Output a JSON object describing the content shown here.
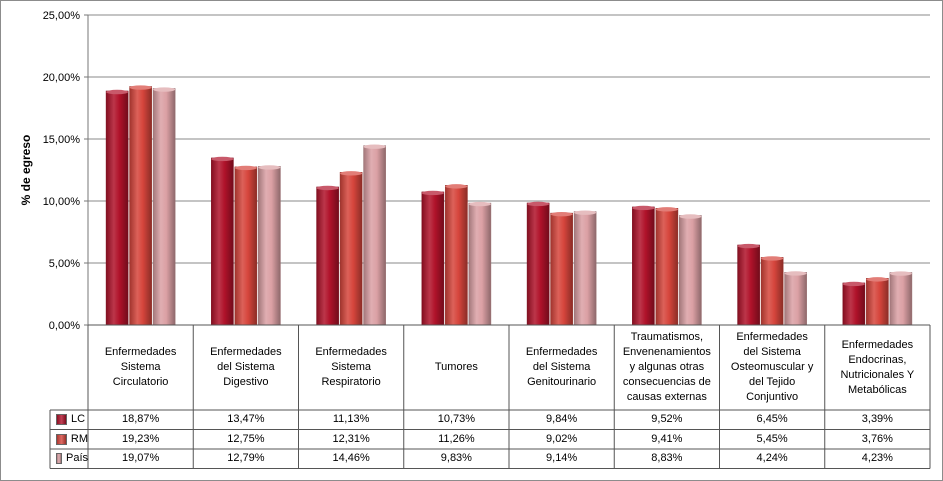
{
  "chart_data": {
    "type": "bar",
    "ylabel": "% de egreso",
    "ylim": [
      0,
      25
    ],
    "yticks": [
      "0,00%",
      "5,00%",
      "10,00%",
      "15,00%",
      "20,00%",
      "25,00%"
    ],
    "grid": true,
    "legend": "table-left",
    "categories": [
      "Enfermedades Sistema Circulatorio",
      "Enfermedades del Sistema Digestivo",
      "Enfermedades Sistema Respiratorio",
      "Tumores",
      "Enfermedades del Sistema Genitourinario",
      "Traumatismos, Envenenamientos y algunas otras consecuencias de causas externas",
      "Enfermedades del Sistema Osteomuscular y del Tejido Conjuntivo",
      "Enfermedades Endocrinas, Nutricionales Y Metabólicas"
    ],
    "category_lines": [
      [
        "Enfermedades",
        "Sistema",
        "Circulatorio"
      ],
      [
        "Enfermedades",
        "del Sistema",
        "Digestivo"
      ],
      [
        "Enfermedades",
        "Sistema",
        "Respiratorio"
      ],
      [
        "Tumores"
      ],
      [
        "Enfermedades",
        "del Sistema",
        "Genitourinario"
      ],
      [
        "Traumatismos,",
        "Envenenamientos",
        "y algunas otras",
        "consecuencias de",
        "causas externas"
      ],
      [
        "Enfermedades",
        "del Sistema",
        "Osteomuscular y",
        "del Tejido",
        "Conjuntivo"
      ],
      [
        "Enfermedades",
        "Endocrinas,",
        "Nutricionales Y",
        "Metabólicas"
      ]
    ],
    "series": [
      {
        "name": "LC",
        "color": "#b0122a",
        "values": [
          18.87,
          13.47,
          11.13,
          10.73,
          9.84,
          9.52,
          6.45,
          3.39
        ],
        "labels": [
          "18,87%",
          "13,47%",
          "11,13%",
          "10,73%",
          "9,84%",
          "9,52%",
          "6,45%",
          "3,39%"
        ]
      },
      {
        "name": "RM",
        "color": "#d6453c",
        "values": [
          19.23,
          12.75,
          12.31,
          11.26,
          9.02,
          9.41,
          5.45,
          3.76
        ],
        "labels": [
          "19,23%",
          "12,75%",
          "12,31%",
          "11,26%",
          "9,02%",
          "9,41%",
          "5,45%",
          "3,76%"
        ]
      },
      {
        "name": "País",
        "color": "#dba0a4",
        "values": [
          19.07,
          12.79,
          14.46,
          9.83,
          9.14,
          8.83,
          4.24,
          4.23
        ],
        "labels": [
          "19,07%",
          "12,79%",
          "14,46%",
          "9,83%",
          "9,14%",
          "8,83%",
          "4,24%",
          "4,23%"
        ]
      }
    ]
  }
}
